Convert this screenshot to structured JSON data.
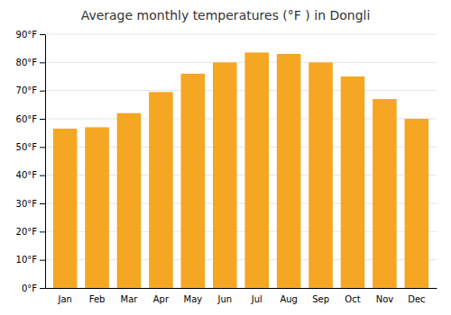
{
  "chart_data": {
    "type": "bar",
    "title": "Average monthly temperatures (°F ) in Dongli",
    "categories": [
      "Jan",
      "Feb",
      "Mar",
      "Apr",
      "May",
      "Jun",
      "Jul",
      "Aug",
      "Sep",
      "Oct",
      "Nov",
      "Dec"
    ],
    "values": [
      56.5,
      57.0,
      62.0,
      69.5,
      76.0,
      80.0,
      83.5,
      83.0,
      80.0,
      75.0,
      67.0,
      60.0
    ],
    "color": "#F5A623",
    "ylim": [
      0,
      90
    ],
    "yticks": [
      {
        "value": 0,
        "label": "0°F"
      },
      {
        "value": 10,
        "label": "10°F"
      },
      {
        "value": 20,
        "label": "20°F"
      },
      {
        "value": 30,
        "label": "30°F"
      },
      {
        "value": 40,
        "label": "40°F"
      },
      {
        "value": 50,
        "label": "50°F"
      },
      {
        "value": 60,
        "label": "60°F"
      },
      {
        "value": 70,
        "label": "70°F"
      },
      {
        "value": 80,
        "label": "80°F"
      },
      {
        "value": 90,
        "label": "90°F"
      }
    ],
    "grid": true
  }
}
